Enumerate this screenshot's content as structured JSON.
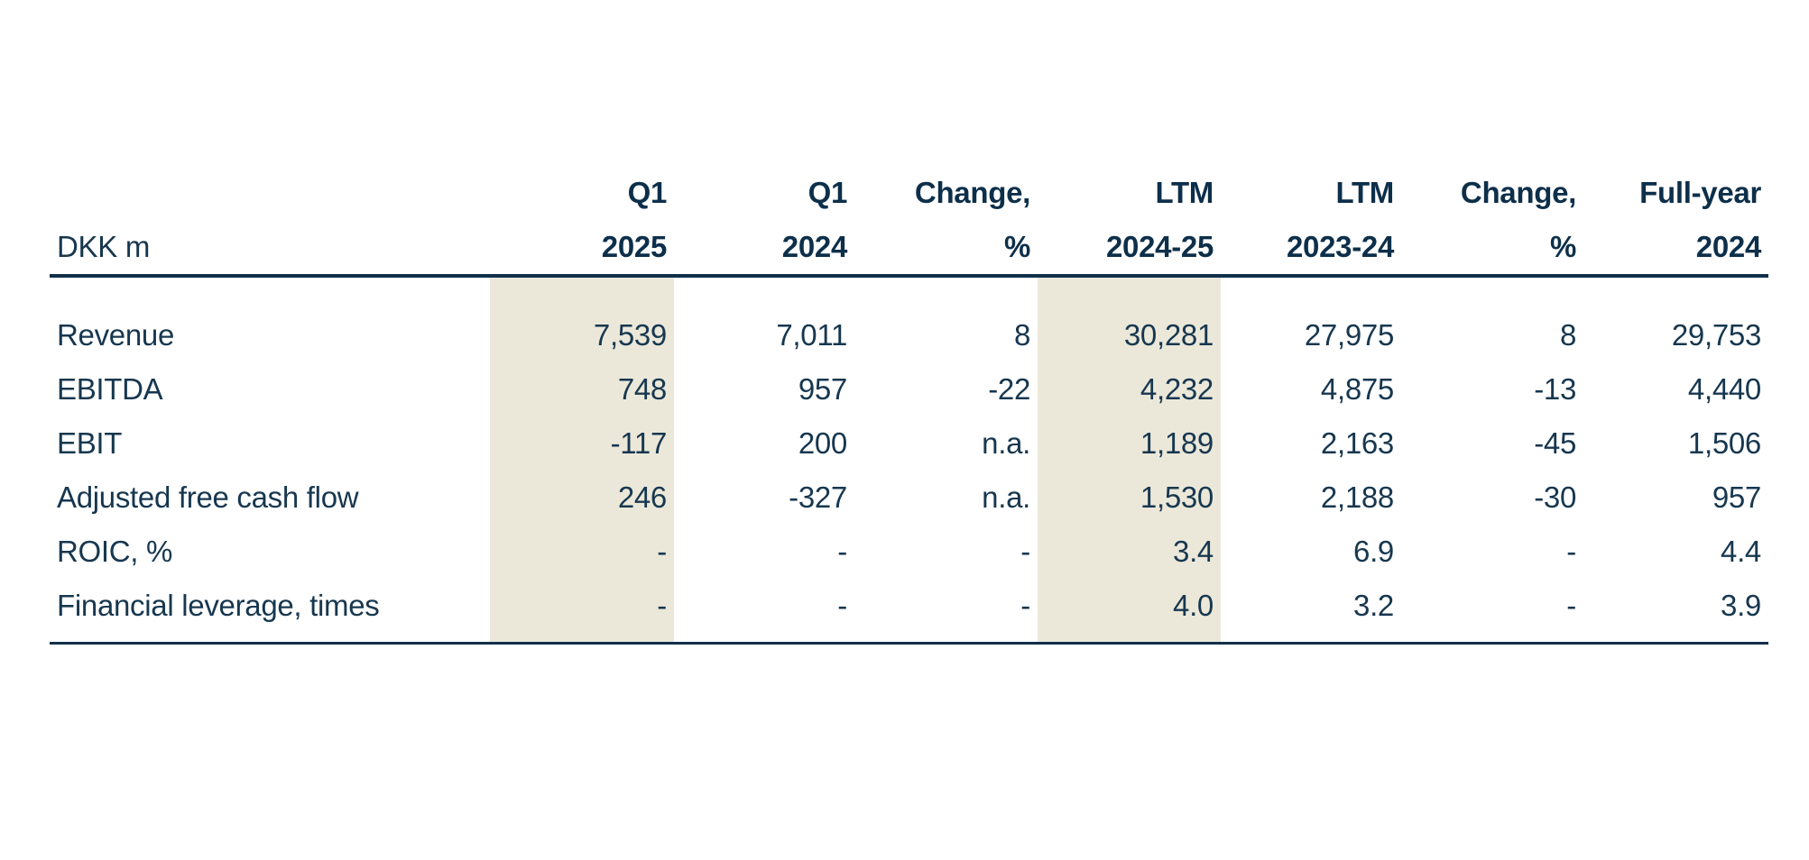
{
  "chart_data": {
    "type": "table",
    "unit_label": "DKK m",
    "columns": [
      {
        "line1": "Q1",
        "line2": "2025",
        "highlighted": true
      },
      {
        "line1": "Q1",
        "line2": "2024",
        "highlighted": false
      },
      {
        "line1": "Change,",
        "line2": "%",
        "highlighted": false
      },
      {
        "line1": "LTM",
        "line2": "2024-25",
        "highlighted": true
      },
      {
        "line1": "LTM",
        "line2": "2023-24",
        "highlighted": false
      },
      {
        "line1": "Change,",
        "line2": "%",
        "highlighted": false
      },
      {
        "line1": "Full-year",
        "line2": "2024",
        "highlighted": false
      }
    ],
    "rows": [
      {
        "label": "Revenue",
        "values": [
          "7,539",
          "7,011",
          "8",
          "30,281",
          "27,975",
          "8",
          "29,753"
        ]
      },
      {
        "label": "EBITDA",
        "values": [
          "748",
          "957",
          "-22",
          "4,232",
          "4,875",
          "-13",
          "4,440"
        ]
      },
      {
        "label": "EBIT",
        "values": [
          "-117",
          "200",
          "n.a.",
          "1,189",
          "2,163",
          "-45",
          "1,506"
        ]
      },
      {
        "label": "Adjusted free cash flow",
        "values": [
          "246",
          "-327",
          "n.a.",
          "1,530",
          "2,188",
          "-30",
          "957"
        ]
      },
      {
        "label": "ROIC, %",
        "values": [
          "-",
          "-",
          "-",
          "3.4",
          "6.9",
          "-",
          "4.4"
        ]
      },
      {
        "label": "Financial leverage, times",
        "values": [
          "-",
          "-",
          "-",
          "4.0",
          "3.2",
          "-",
          "3.9"
        ]
      }
    ]
  },
  "colors": {
    "background": "#ffffff",
    "text": "#17374f",
    "header_text": "#0d2f4a",
    "column_highlight": "#ebe8da",
    "rule": "#12304a"
  }
}
